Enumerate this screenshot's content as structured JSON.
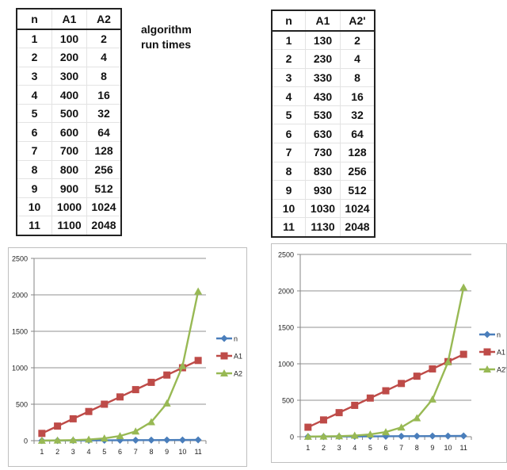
{
  "note": {
    "line1": "algorithm",
    "line2": "run times"
  },
  "left_table": {
    "headers": [
      "n",
      "A1",
      "A2"
    ],
    "rows": [
      [
        "1",
        "100",
        "2"
      ],
      [
        "2",
        "200",
        "4"
      ],
      [
        "3",
        "300",
        "8"
      ],
      [
        "4",
        "400",
        "16"
      ],
      [
        "5",
        "500",
        "32"
      ],
      [
        "6",
        "600",
        "64"
      ],
      [
        "7",
        "700",
        "128"
      ],
      [
        "8",
        "800",
        "256"
      ],
      [
        "9",
        "900",
        "512"
      ],
      [
        "10",
        "1000",
        "1024"
      ],
      [
        "11",
        "1100",
        "2048"
      ]
    ]
  },
  "right_table": {
    "headers": [
      "n",
      "A1",
      "A2'"
    ],
    "rows": [
      [
        "1",
        "130",
        "2"
      ],
      [
        "2",
        "230",
        "4"
      ],
      [
        "3",
        "330",
        "8"
      ],
      [
        "4",
        "430",
        "16"
      ],
      [
        "5",
        "530",
        "32"
      ],
      [
        "6",
        "630",
        "64"
      ],
      [
        "7",
        "730",
        "128"
      ],
      [
        "8",
        "830",
        "256"
      ],
      [
        "9",
        "930",
        "512"
      ],
      [
        "10",
        "1030",
        "1024"
      ],
      [
        "11",
        "1130",
        "2048"
      ]
    ]
  },
  "colors": {
    "n": "#4a7ebb",
    "A1": "#be4b48",
    "A2": "#98b954",
    "grid": "#a6a6a6",
    "axis": "#868686"
  },
  "chart_data": [
    {
      "type": "line",
      "title": "",
      "xlabel": "",
      "ylabel": "",
      "categories": [
        1,
        2,
        3,
        4,
        5,
        6,
        7,
        8,
        9,
        10,
        11
      ],
      "yticks": [
        0,
        500,
        1000,
        1500,
        2000,
        2500
      ],
      "ylim": [
        0,
        2500
      ],
      "grid": true,
      "legend_position": "right",
      "series": [
        {
          "name": "n",
          "marker": "diamond",
          "values": [
            1,
            2,
            3,
            4,
            5,
            6,
            7,
            8,
            9,
            10,
            11
          ]
        },
        {
          "name": "A1",
          "marker": "square",
          "values": [
            100,
            200,
            300,
            400,
            500,
            600,
            700,
            800,
            900,
            1000,
            1100
          ]
        },
        {
          "name": "A2",
          "marker": "triangle",
          "values": [
            2,
            4,
            8,
            16,
            32,
            64,
            128,
            256,
            512,
            1024,
            2048
          ]
        }
      ]
    },
    {
      "type": "line",
      "title": "",
      "xlabel": "",
      "ylabel": "",
      "categories": [
        1,
        2,
        3,
        4,
        5,
        6,
        7,
        8,
        9,
        10,
        11
      ],
      "yticks": [
        0,
        500,
        1000,
        1500,
        2000,
        2500
      ],
      "ylim": [
        0,
        2500
      ],
      "grid": true,
      "legend_position": "right",
      "series": [
        {
          "name": "n",
          "marker": "diamond",
          "values": [
            1,
            2,
            3,
            4,
            5,
            6,
            7,
            8,
            9,
            10,
            11
          ]
        },
        {
          "name": "A1",
          "marker": "square",
          "values": [
            130,
            230,
            330,
            430,
            530,
            630,
            730,
            830,
            930,
            1030,
            1130
          ]
        },
        {
          "name": "A2'",
          "marker": "triangle",
          "values": [
            2,
            4,
            8,
            16,
            32,
            64,
            128,
            256,
            512,
            1024,
            2048
          ]
        }
      ]
    }
  ]
}
